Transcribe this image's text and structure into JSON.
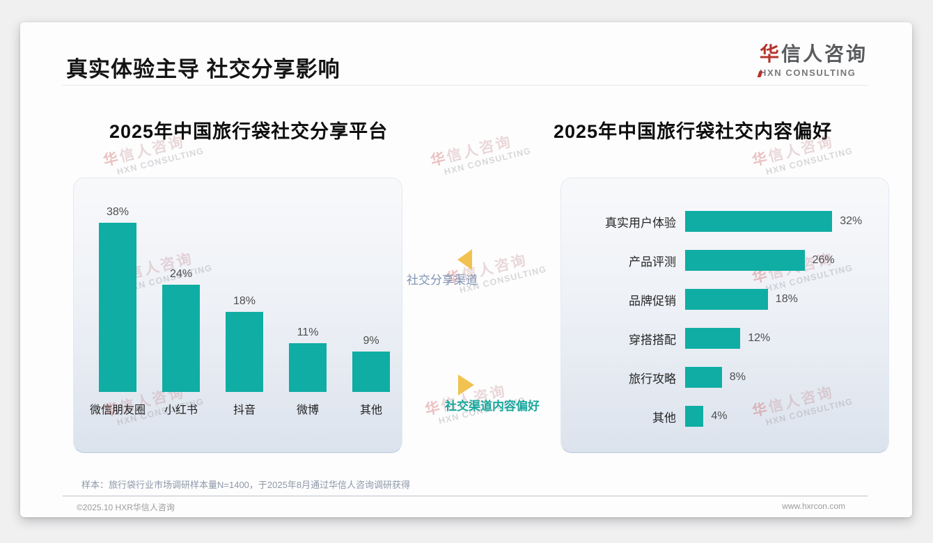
{
  "slide": {
    "title": "真实体验主导 社交分享影响",
    "logo": {
      "cn_first": "华",
      "cn_rest": "信人咨询",
      "en": "HXN CONSULTING"
    },
    "center_labels": {
      "share_channel": "社交分享渠道",
      "content_preference": "社交渠道内容偏好"
    },
    "watermark": {
      "cn_first": "华",
      "cn_rest": "信人咨询",
      "en": "HXN CONSULTING"
    },
    "footnote": "样本：旅行袋行业市场调研样本量N=1400，于2025年8月通过华信人咨询调研获得",
    "footer": {
      "copyright": "©2025.10 HXR华信人咨询",
      "website": "www.hxrcon.com"
    },
    "colors": {
      "bar_teal": "#0fada3",
      "arrow_yellow": "#f1c24f",
      "center_label_blue": "#7e93b4",
      "center_label_teal": "#19a79d",
      "logo_red": "#b5342c"
    }
  },
  "chart_data": [
    {
      "type": "bar",
      "orientation": "vertical",
      "title": "2025年中国旅行袋社交分享平台",
      "categories": [
        "微信朋友圈",
        "小红书",
        "抖音",
        "微博",
        "其他"
      ],
      "values": [
        38,
        24,
        18,
        11,
        9
      ],
      "value_labels": [
        "38%",
        "24%",
        "18%",
        "11%",
        "9%"
      ],
      "unit": "%",
      "ylim": [
        0,
        40
      ],
      "grid": false,
      "bar_color": "#0fada3"
    },
    {
      "type": "bar",
      "orientation": "horizontal",
      "title": "2025年中国旅行袋社交内容偏好",
      "categories": [
        "真实用户体验",
        "产品评测",
        "品牌促销",
        "穿搭搭配",
        "旅行攻略",
        "其他"
      ],
      "values": [
        32,
        26,
        18,
        12,
        8,
        4
      ],
      "value_labels": [
        "32%",
        "26%",
        "18%",
        "12%",
        "8%",
        "4%"
      ],
      "unit": "%",
      "xlim": [
        0,
        35
      ],
      "grid": false,
      "bar_color": "#0fada3"
    }
  ]
}
